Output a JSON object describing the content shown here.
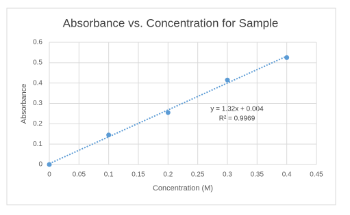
{
  "chart_data": {
    "type": "scatter",
    "title": "Absorbance vs. Concentration for Sample",
    "x_label": "Concentration (M)",
    "y_label": "Absorbance",
    "series": [
      {
        "name": "Sample",
        "color": "#5b9bd5",
        "x": [
          0,
          0.1,
          0.2,
          0.3,
          0.4
        ],
        "values": [
          0,
          0.145,
          0.255,
          0.415,
          0.525
        ]
      }
    ],
    "trendline": {
      "slope": 1.32,
      "intercept": 0.004,
      "equation": "y = 1.32x + 0.004",
      "r_squared": "R² = 0.9969"
    },
    "xlim": [
      0,
      0.45
    ],
    "xticks": [
      0,
      0.05,
      0.1,
      0.15,
      0.2,
      0.25,
      0.3,
      0.35,
      0.4,
      0.45
    ],
    "ylim": [
      0,
      0.6
    ],
    "yticks": [
      0,
      0.1,
      0.2,
      0.3,
      0.4,
      0.5,
      0.6
    ],
    "grid": true
  }
}
